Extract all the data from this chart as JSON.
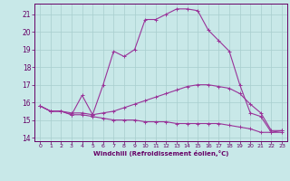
{
  "xlabel": "Windchill (Refroidissement éolien,°C)",
  "bg_color": "#c8e8e8",
  "grid_color": "#a8cece",
  "line_color": "#993399",
  "xlim": [
    -0.5,
    23.5
  ],
  "ylim": [
    13.8,
    21.6
  ],
  "xticks": [
    0,
    1,
    2,
    3,
    4,
    5,
    6,
    7,
    8,
    9,
    10,
    11,
    12,
    13,
    14,
    15,
    16,
    17,
    18,
    19,
    20,
    21,
    22,
    23
  ],
  "yticks": [
    14,
    15,
    16,
    17,
    18,
    19,
    20,
    21
  ],
  "curve1_x": [
    0,
    1,
    2,
    3,
    4,
    5,
    6,
    7,
    8,
    9,
    10,
    11,
    12,
    13,
    14,
    15,
    16,
    17,
    18,
    19,
    20,
    21,
    22,
    23
  ],
  "curve1_y": [
    15.8,
    15.5,
    15.5,
    15.3,
    16.4,
    15.3,
    17.0,
    18.9,
    18.6,
    19.0,
    20.7,
    20.7,
    21.0,
    21.3,
    21.3,
    21.2,
    20.1,
    19.5,
    18.9,
    17.0,
    15.4,
    15.2,
    14.3,
    14.4
  ],
  "curve2_x": [
    0,
    1,
    2,
    3,
    4,
    5,
    6,
    7,
    8,
    9,
    10,
    11,
    12,
    13,
    14,
    15,
    16,
    17,
    18,
    19,
    20,
    21,
    22,
    23
  ],
  "curve2_y": [
    15.8,
    15.5,
    15.5,
    15.4,
    15.4,
    15.3,
    15.4,
    15.5,
    15.7,
    15.9,
    16.1,
    16.3,
    16.5,
    16.7,
    16.9,
    17.0,
    17.0,
    16.9,
    16.8,
    16.5,
    15.9,
    15.4,
    14.4,
    14.4
  ],
  "curve3_x": [
    0,
    1,
    2,
    3,
    4,
    5,
    6,
    7,
    8,
    9,
    10,
    11,
    12,
    13,
    14,
    15,
    16,
    17,
    18,
    19,
    20,
    21,
    22,
    23
  ],
  "curve3_y": [
    15.8,
    15.5,
    15.5,
    15.3,
    15.3,
    15.2,
    15.1,
    15.0,
    15.0,
    15.0,
    14.9,
    14.9,
    14.9,
    14.8,
    14.8,
    14.8,
    14.8,
    14.8,
    14.7,
    14.6,
    14.5,
    14.3,
    14.3,
    14.3
  ]
}
